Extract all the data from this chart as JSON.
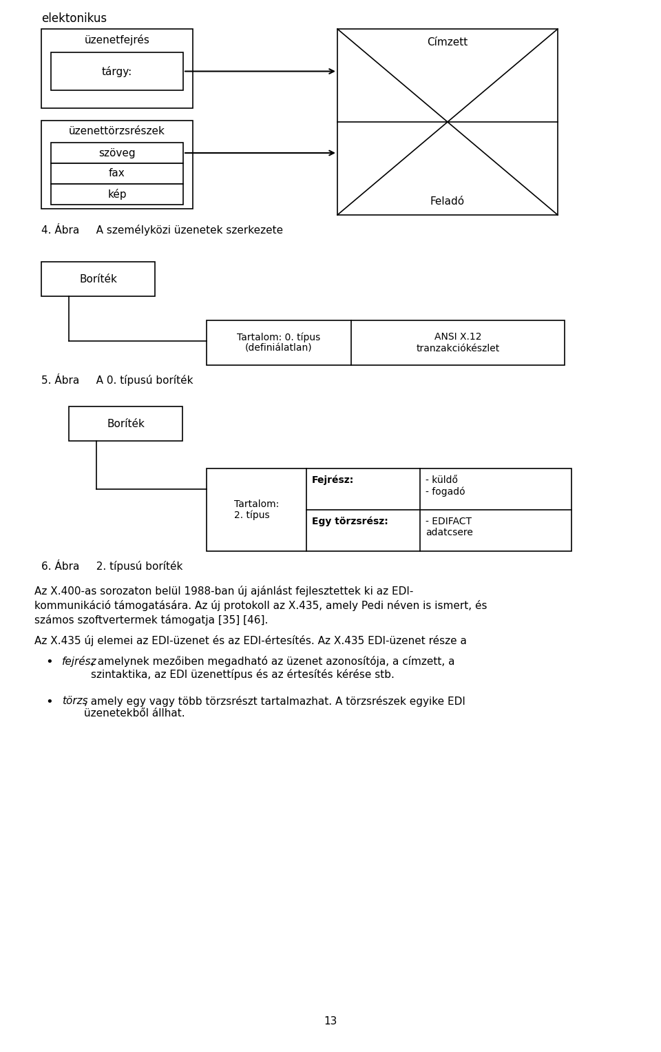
{
  "bg_color": "#ffffff",
  "fig_width": 9.6,
  "fig_height": 15.27,
  "top_text": "elektonikus",
  "diagram1": {
    "caption": "4. Ábra     A személyközi üzenetek szerkezete",
    "box1_label": "üzenetfejrés",
    "box1_inner_label": "tárgy:",
    "box2_label": "üzenettörzsrészek",
    "box2_inner_labels": [
      "szöveg",
      "fax",
      "kép"
    ],
    "envelope_top": "Címzett",
    "envelope_bottom": "Feladó"
  },
  "diagram2": {
    "caption": "5. Ábra     A 0. típusú boríték",
    "box_label": "Boríték",
    "col1": "Tartalom: 0. típus\n(definiálatlan)",
    "col2": "ANSI X.12\ntranzakciókészlet"
  },
  "diagram3": {
    "caption": "6. Ábra     2. típusú boríték",
    "box_label": "Boríték",
    "col1": "Tartalom:\n2. típus",
    "row1_label": "Fejrész:",
    "row1_val": "- küldő\n- fogadó",
    "row2_label": "Egy törzsrész:",
    "row2_val": "- EDIFACT\nadatcsere"
  },
  "body_line1a": "Az X.400-as sorozaton belül 1988-ban új ajánlást fejlesztettek ki az EDI-",
  "body_line1b": "kommunikáció támogatására. Az új protokoll az X.435, amely Pedi néven is ismert, és",
  "body_line1c": "számos szoftvertermek támogatja [35] [46].",
  "body_line2": "Az X.435 új elemei az EDI-üzenet és az EDI-értesítés. Az X.435 EDI-üzenet része a",
  "bullet1_it": "fejrész",
  "bullet1_rest": ", amelynek mezőiben megadható az üzenet azonosítója, a címzett, a\nszintaktika, az EDI üzenettípus és az értesítés kérése stb.",
  "bullet2_it": "törzs",
  "bullet2_rest": ", amely egy vagy több törzsrészt tartalmazhat. A törzsrészek egyike EDI\nüzenetekből állhat.",
  "page_number": "13"
}
